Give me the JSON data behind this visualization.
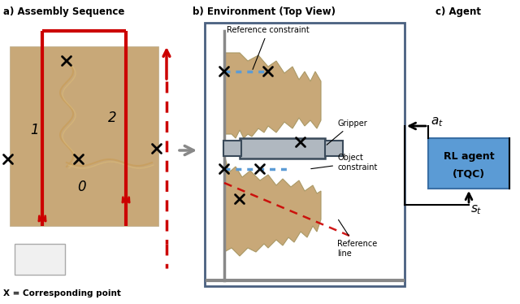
{
  "panel_a_title": "a) Assembly Sequence",
  "panel_b_title": "b) Environment (Top View)",
  "panel_c_title": "c) Agent",
  "tan_color": "#C8A878",
  "red_color": "#CC0000",
  "blue_color": "#5B9BD5",
  "gripper_face": "#B0B8C0",
  "gripper_edge": "#3A4A5A",
  "bg_color": "#FFFFFF",
  "panel_b_border": "#4A6080",
  "legend_x_bold": true
}
